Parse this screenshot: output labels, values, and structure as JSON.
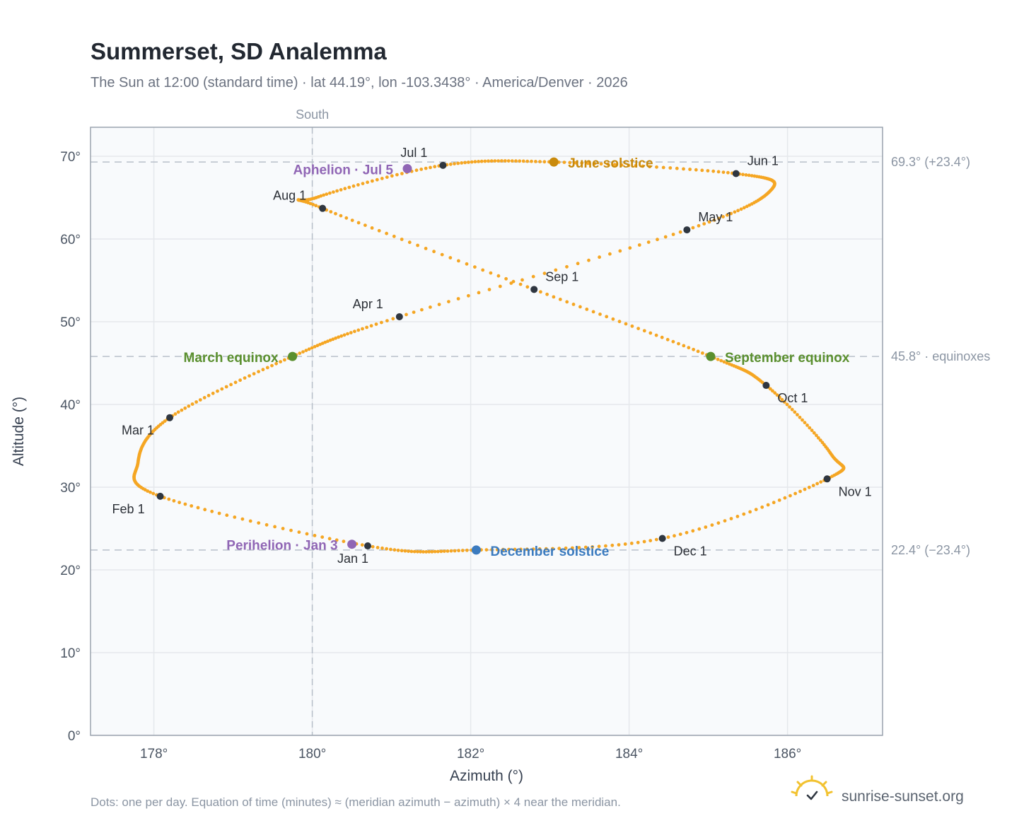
{
  "header": {
    "title": "Summerset, SD Analemma",
    "subtitle": "The Sun at 12:00 (standard time) · lat 44.19°, lon -103.3438° · America/Denver · 2026"
  },
  "footer": {
    "note": "Dots: one per day. Equation of time (minutes) ≈ (meridian azimuth − azimuth) × 4 near the meridian.",
    "brand": "sunrise-sunset.org",
    "brand_icon": "sun-check-icon"
  },
  "colors": {
    "path": "#f5a623",
    "month_marker": "#2f3640",
    "june_solstice": "#c98a0c",
    "december_solstice": "#3b7bbf",
    "equinox": "#5a8f2e",
    "apsis": "#9066b5",
    "grid": "#e5e8ec",
    "reference_line": "#b8c0ca",
    "frame": "#9aa3ae"
  },
  "chart_data": {
    "type": "scatter",
    "xlabel": "Azimuth (°)",
    "ylabel": "Altitude (°)",
    "xlim": [
      177.2,
      187.2
    ],
    "ylim": [
      0,
      73.5
    ],
    "xticks": [
      178,
      180,
      182,
      184,
      186
    ],
    "yticks": [
      0,
      10,
      20,
      30,
      40,
      50,
      60,
      70
    ],
    "grid": true,
    "meridian": {
      "azimuth": 180,
      "label": "South"
    },
    "reference_lines": [
      {
        "altitude": 69.3,
        "label": "69.3° (+23.4°)"
      },
      {
        "altitude": 45.8,
        "label": "45.8° · equinoxes"
      },
      {
        "altitude": 22.4,
        "label": "22.4° (−23.4°)"
      }
    ],
    "path_anchors": [
      {
        "x": 180.7,
        "y": 22.9
      },
      {
        "x": 178.08,
        "y": 28.9
      },
      {
        "x": 177.8,
        "y": 33.0
      },
      {
        "x": 178.2,
        "y": 38.4
      },
      {
        "x": 179.75,
        "y": 45.8
      },
      {
        "x": 181.1,
        "y": 50.6
      },
      {
        "x": 184.73,
        "y": 61.1
      },
      {
        "x": 185.8,
        "y": 66.0
      },
      {
        "x": 185.35,
        "y": 67.9
      },
      {
        "x": 183.05,
        "y": 69.3
      },
      {
        "x": 181.65,
        "y": 68.9
      },
      {
        "x": 180.05,
        "y": 65.0
      },
      {
        "x": 180.13,
        "y": 63.7
      },
      {
        "x": 182.8,
        "y": 53.9
      },
      {
        "x": 185.03,
        "y": 45.8
      },
      {
        "x": 185.73,
        "y": 42.3
      },
      {
        "x": 186.55,
        "y": 34.0
      },
      {
        "x": 186.5,
        "y": 31.0
      },
      {
        "x": 184.42,
        "y": 23.8
      },
      {
        "x": 182.07,
        "y": 22.4
      },
      {
        "x": 180.7,
        "y": 22.9
      }
    ],
    "months": [
      {
        "label": "Jan 1",
        "x": 180.7,
        "y": 22.9
      },
      {
        "label": "Feb 1",
        "x": 178.08,
        "y": 28.9
      },
      {
        "label": "Mar 1",
        "x": 178.2,
        "y": 38.4
      },
      {
        "label": "Apr 1",
        "x": 181.1,
        "y": 50.6
      },
      {
        "label": "May 1",
        "x": 184.73,
        "y": 61.1
      },
      {
        "label": "Jun 1",
        "x": 185.35,
        "y": 67.9
      },
      {
        "label": "Jul 1",
        "x": 181.65,
        "y": 68.9
      },
      {
        "label": "Aug 1",
        "x": 180.13,
        "y": 63.7
      },
      {
        "label": "Sep 1",
        "x": 182.8,
        "y": 53.9
      },
      {
        "label": "Oct 1",
        "x": 185.73,
        "y": 42.3
      },
      {
        "label": "Nov 1",
        "x": 186.5,
        "y": 31.0
      },
      {
        "label": "Dec 1",
        "x": 184.42,
        "y": 23.8
      }
    ],
    "events": [
      {
        "label": "June solstice",
        "x": 183.05,
        "y": 69.3,
        "color": "#c98a0c"
      },
      {
        "label": "December solstice",
        "x": 182.07,
        "y": 22.4,
        "color": "#3b7bbf"
      },
      {
        "label": "March equinox",
        "x": 179.75,
        "y": 45.8,
        "color": "#5a8f2e"
      },
      {
        "label": "September equinox",
        "x": 185.03,
        "y": 45.8,
        "color": "#5a8f2e"
      },
      {
        "label": "Aphelion · Jul 5",
        "x": 181.2,
        "y": 68.5,
        "color": "#9066b5"
      },
      {
        "label": "Perihelion · Jan 3",
        "x": 180.5,
        "y": 23.1,
        "color": "#9066b5"
      }
    ]
  }
}
